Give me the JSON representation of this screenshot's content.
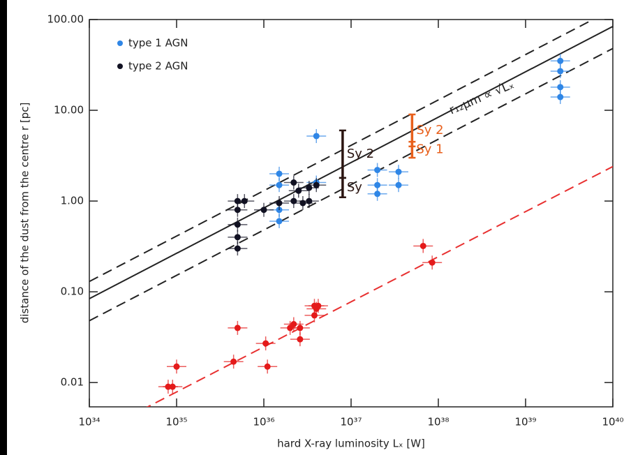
{
  "chart_data": {
    "type": "scatter",
    "x_label": "hard X-ray luminosity Lₓ [W]",
    "y_label": "distance of the dust from the centre r [pc]",
    "log_x": true,
    "log_y": true,
    "xlim": [
      1e+34,
      1e+40
    ],
    "ylim": [
      0.0054,
      100
    ],
    "xticks": [
      {
        "value": 1e+34,
        "label": "10³⁴"
      },
      {
        "value": 1e+35,
        "label": "10³⁵"
      },
      {
        "value": 1e+36,
        "label": "10³⁶"
      },
      {
        "value": 1e+37,
        "label": "10³⁷"
      },
      {
        "value": 1e+38,
        "label": "10³⁸"
      },
      {
        "value": 1e+39,
        "label": "10³⁹"
      },
      {
        "value": 1e+40,
        "label": "10⁴⁰"
      }
    ],
    "yticks": [
      {
        "value": 0.01,
        "label": "0.01"
      },
      {
        "value": 0.1,
        "label": "0.10"
      },
      {
        "value": 1,
        "label": "1.00"
      },
      {
        "value": 10,
        "label": "10.00"
      },
      {
        "value": 100,
        "label": "100.00"
      }
    ],
    "legend": "upper left",
    "series": [
      {
        "type": "line",
        "color": "#222222",
        "dash": false,
        "x": [
          1e+34,
          1e+40
        ],
        "values": [
          0.084,
          84
        ]
      },
      {
        "type": "line",
        "color": "#222222",
        "dash": true,
        "x": [
          1e+34,
          1e+40
        ],
        "values": [
          0.13,
          130
        ]
      },
      {
        "type": "line",
        "color": "#222222",
        "dash": true,
        "x": [
          1e+34,
          1e+40
        ],
        "values": [
          0.048,
          48
        ]
      },
      {
        "type": "line",
        "color": "#e83030",
        "dash": true,
        "x": [
          4e+34,
          1e+40
        ],
        "values": [
          0.005,
          2.4
        ]
      },
      {
        "type": "scatter",
        "name": "type 1 AGN",
        "color": "#2f86e6",
        "x": [
          4e+36,
          2.5e+39,
          2.5e+39,
          2.5e+39,
          2.5e+39,
          1.5e+36,
          1.5e+36,
          1.5e+36,
          1.5e+36,
          4e+36,
          2e+37,
          2e+37,
          3.5e+37,
          3.5e+37,
          2e+37
        ],
        "values": [
          5.2,
          35,
          18,
          27,
          14,
          0.8,
          0.6,
          1.5,
          2.0,
          1.6,
          1.2,
          1.5,
          2.1,
          1.5,
          2.2
        ]
      },
      {
        "type": "scatter",
        "name": "type 2 AGN",
        "color": "#111122",
        "x": [
          5e+35,
          5e+35,
          5e+35,
          5e+35,
          5e+35,
          6e+35,
          1.5e+36,
          2.2e+36,
          2.2e+36,
          2.5e+36,
          3.3e+36,
          3.3e+36,
          4e+36,
          1e+36,
          2.8e+36
        ],
        "values": [
          1.0,
          0.8,
          0.55,
          0.4,
          0.3,
          1.0,
          0.95,
          1.6,
          1.0,
          1.3,
          1.0,
          1.4,
          1.5,
          0.8,
          0.95
        ]
      },
      {
        "type": "scatter",
        "color": "#e41a1a",
        "x": [
          8e+34,
          9e+34,
          1e+35,
          4.5e+35,
          1.1e+36,
          1.05e+36,
          5e+35,
          2e+36,
          2.2e+36,
          2.6e+36,
          2.6e+36,
          3.8e+36,
          4e+36,
          4.2e+36,
          3.8e+36,
          6.7e+37,
          8.5e+37
        ],
        "values": [
          0.009,
          0.009,
          0.015,
          0.017,
          0.015,
          0.027,
          0.04,
          0.04,
          0.044,
          0.04,
          0.03,
          0.055,
          0.065,
          0.07,
          0.07,
          0.32,
          0.21
        ]
      }
    ],
    "ranges": [
      {
        "label": "Sy 2",
        "color": "#e8601c",
        "x": 5e+37,
        "low": 4,
        "high": 9
      },
      {
        "label": "Sy 1",
        "color": "#e8601c",
        "x": 5e+37,
        "low": 3,
        "high": 4.5
      },
      {
        "label": "Sy 2",
        "color": "#2a1410",
        "x": 8e+36,
        "low": 1.8,
        "high": 6
      },
      {
        "label": "Sy",
        "color": "#2a1410",
        "x": 8e+36,
        "low": 1.1,
        "high": 1.8
      }
    ],
    "annotation": "r₁₂μm ∝ √Lₓ"
  }
}
